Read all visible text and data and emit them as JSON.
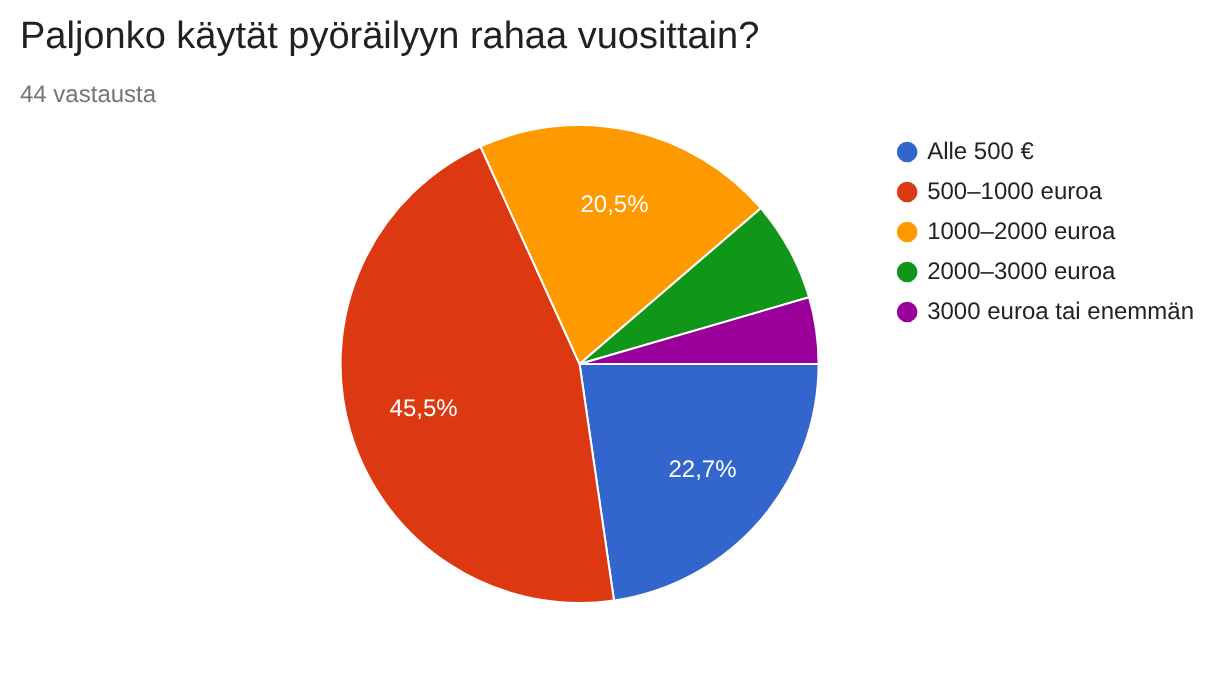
{
  "chart_data": {
    "type": "pie",
    "title": "Paljonko käytät pyöräilyyn rahaa vuosittain?",
    "subtitle": "44 vastausta",
    "categories": [
      "Alle 500 €",
      "500–1000 euroa",
      "1000–2000 euroa",
      "2000–3000 euroa",
      "3000 euroa tai enemmän"
    ],
    "values": [
      22.7,
      45.5,
      20.5,
      6.8,
      4.5
    ],
    "colors": [
      "#3366cc",
      "#dc3912",
      "#ff9900",
      "#109618",
      "#990099"
    ],
    "value_labels": [
      "22,7%",
      "45,5%",
      "20,5%",
      null,
      null
    ],
    "legend": "right"
  }
}
